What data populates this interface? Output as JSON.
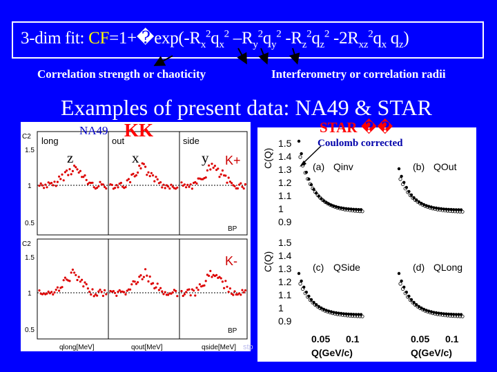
{
  "formula": {
    "prefix": "3-dim fit: ",
    "cf_label": "CF",
    "body_start": "=1+�exp(-R",
    "s1": "x",
    "p1": "2",
    "q1": "q",
    "s2": "x",
    "p2": "2",
    "m1": " –R",
    "s3": "y",
    "p3": "2",
    "q2": "q",
    "s4": "y",
    "p4": "2",
    "m2": " -R",
    "s5": "z",
    "p5": "2",
    "q3": "q",
    "s6": "z",
    "p6": "2",
    "m3": " -2R",
    "s7": "xz",
    "p7": "2",
    "q4": "q",
    "s8": "x",
    "q5": " q",
    "s9": "z",
    "end": ")"
  },
  "annotations": {
    "left": "Correlation strength or chaoticity",
    "right": "Interferometry or correlation radii"
  },
  "heading": "Examples of present data: NA49  & STAR",
  "na49": {
    "title": "NA49",
    "particle": "KK",
    "axis_z": "z",
    "axis_x": "x",
    "axis_y": "y",
    "tabs": [
      "long",
      "out",
      "side"
    ],
    "kplus": "K+",
    "kminus": "K-",
    "bp": "BP",
    "ylabel": "C2",
    "xlabels": [
      "qlong[MeV]",
      "qout[MeV]",
      "qside[MeV]"
    ]
  },
  "star": {
    "title": "STAR",
    "particle": "��",
    "coulomb": "Coulomb corrected",
    "ylabel": "C(Q)",
    "yticks": [
      "1.5",
      "1.4",
      "1.3",
      "1.2",
      "1.1",
      "1",
      "0.9"
    ],
    "panels": [
      {
        "tag": "(a)",
        "name": "Qinv"
      },
      {
        "tag": "(b)",
        "name": "QOut"
      },
      {
        "tag": "(c)",
        "name": "QSide"
      },
      {
        "tag": "(d)",
        "name": "QLong"
      }
    ],
    "xticks": [
      "0.05",
      "0.1",
      "0.05",
      "0.1"
    ],
    "xlabel": "Q(GeV/c)"
  },
  "footer": "stp"
}
